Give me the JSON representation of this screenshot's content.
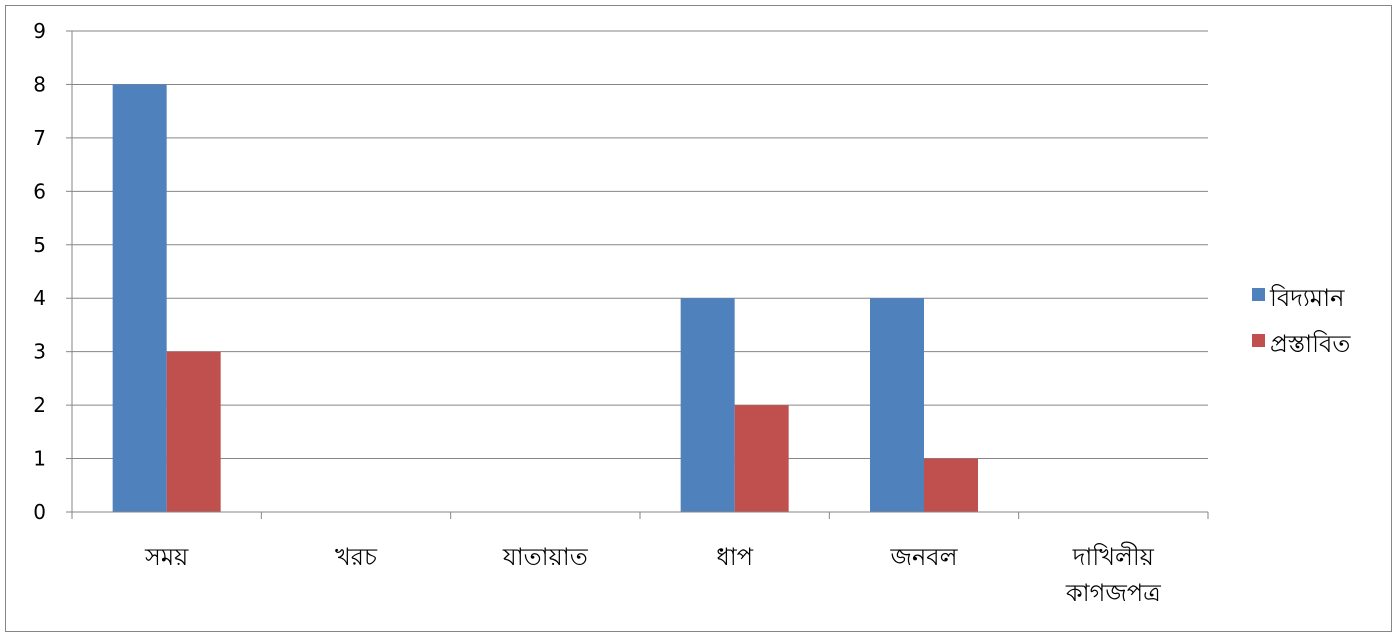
{
  "chart_data": {
    "type": "bar",
    "categories": [
      "সময়",
      "খরচ",
      "যাতায়াত",
      "ধাপ",
      "জনবল",
      "দাখিলীয় কাগজপত্র"
    ],
    "category_lines": [
      [
        "সময়"
      ],
      [
        "খরচ"
      ],
      [
        "যাতায়াত"
      ],
      [
        "ধাপ"
      ],
      [
        "জনবল"
      ],
      [
        "দাখিলীয়",
        "কাগজপত্র"
      ]
    ],
    "series": [
      {
        "name": "বিদ্যমান",
        "values": [
          8,
          0,
          0,
          4,
          4,
          0
        ],
        "color": "#4f81bd"
      },
      {
        "name": "প্রস্তাবিত",
        "values": [
          3,
          0,
          0,
          2,
          1,
          0
        ],
        "color": "#c0504d"
      }
    ],
    "ylim": [
      0,
      9
    ],
    "yticks": [
      0,
      1,
      2,
      3,
      4,
      5,
      6,
      7,
      8,
      9
    ],
    "grid": true,
    "legend_position": "right",
    "title": "",
    "xlabel": "",
    "ylabel": ""
  }
}
